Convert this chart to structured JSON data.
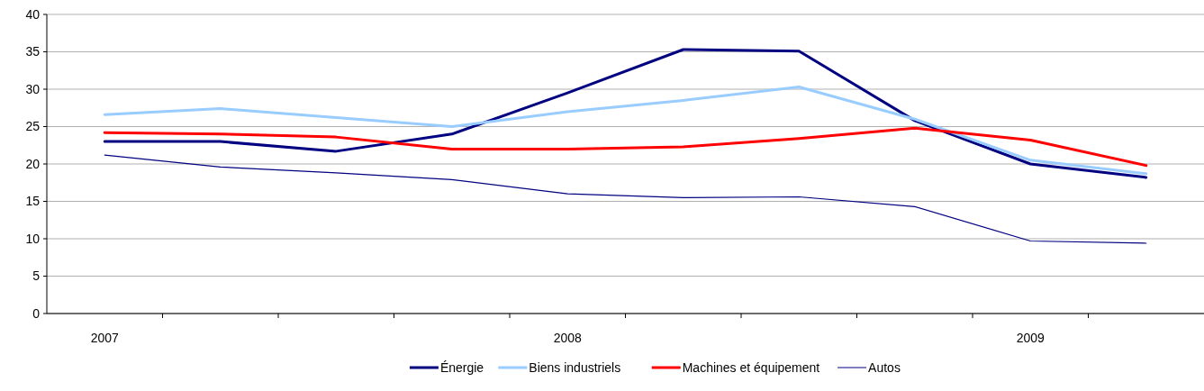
{
  "chart_data": {
    "type": "line",
    "categories": [
      "2007",
      null,
      null,
      null,
      "2008",
      null,
      null,
      null,
      "2009",
      null
    ],
    "ylim": [
      0,
      40
    ],
    "yticks": [
      0,
      5,
      10,
      15,
      20,
      25,
      30,
      35,
      40
    ],
    "grid": "y",
    "legend": "bottom",
    "marker": "none",
    "line_style": "solid",
    "series": [
      {
        "name": "Énergie",
        "color": "#000080",
        "values": [
          23,
          23,
          21.7,
          24,
          29.5,
          35.3,
          35.1,
          25.8,
          20,
          18.2
        ]
      },
      {
        "name": "Biens industriels",
        "color": "#99ccff",
        "values": [
          26.6,
          27.4,
          26.2,
          25,
          27,
          28.5,
          30.3,
          26,
          20.5,
          18.7
        ]
      },
      {
        "name": "Machines et équipement",
        "color": "#ff0000",
        "values": [
          24.2,
          24,
          23.6,
          22,
          22,
          22.3,
          23.4,
          24.8,
          23.2,
          19.8
        ]
      },
      {
        "name": "Autos",
        "color": "#000080",
        "values": [
          21.2,
          19.6,
          18.8,
          17.9,
          16,
          15.5,
          15.6,
          14.3,
          9.7,
          9.4
        ]
      }
    ]
  }
}
